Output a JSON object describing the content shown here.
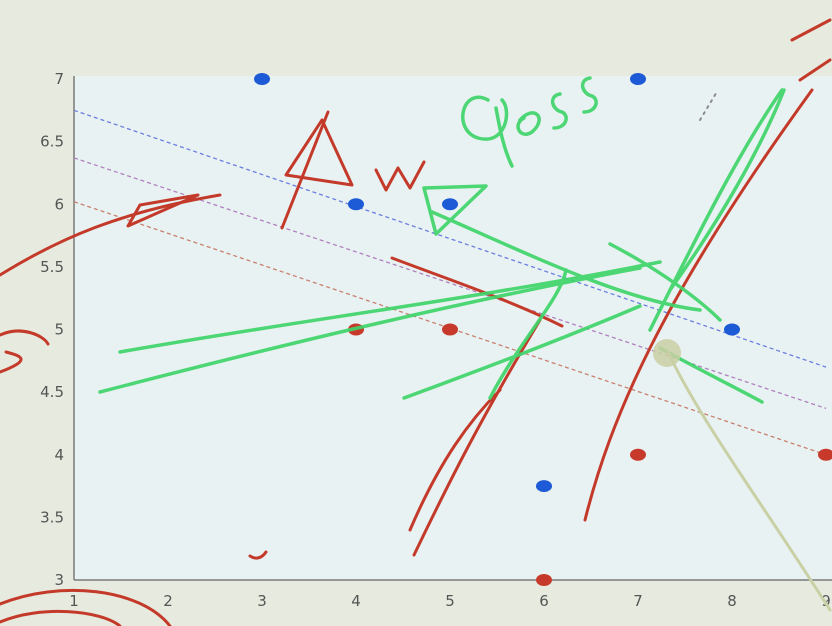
{
  "chart_data": {
    "type": "scatter",
    "title": "",
    "xlabel": "",
    "ylabel": "",
    "xlim": [
      1,
      9
    ],
    "ylim": [
      3,
      7
    ],
    "x_ticks": [
      "1",
      "2",
      "3",
      "4",
      "5",
      "6",
      "7",
      "8",
      "9"
    ],
    "y_ticks": [
      "3",
      "3.5",
      "4",
      "4.5",
      "5",
      "5.5",
      "6",
      "6.5",
      "7"
    ],
    "grid": false,
    "series": [
      {
        "color": "#1d5bd6",
        "points": [
          {
            "x": 3,
            "y": 7
          },
          {
            "x": 7,
            "y": 7
          },
          {
            "x": 4,
            "y": 6
          },
          {
            "x": 5,
            "y": 6
          },
          {
            "x": 8,
            "y": 5
          },
          {
            "x": 6,
            "y": 3.75
          }
        ]
      },
      {
        "color": "#c73a2b",
        "points": [
          {
            "x": 4,
            "y": 5
          },
          {
            "x": 5,
            "y": 5
          },
          {
            "x": 7,
            "y": 4
          },
          {
            "x": 9,
            "y": 4
          },
          {
            "x": 6,
            "y": 3
          }
        ]
      }
    ],
    "lines": [
      {
        "color": "#6a7fe0",
        "style": "dashed",
        "x": [
          1,
          9
        ],
        "y": [
          6.75,
          4.7
        ]
      },
      {
        "color": "#b080c0",
        "style": "dashed",
        "x": [
          1,
          9
        ],
        "y": [
          6.37,
          4.37
        ]
      },
      {
        "color": "#c88070",
        "style": "dashed",
        "x": [
          1,
          9
        ],
        "y": [
          6.02,
          4.0
        ]
      }
    ]
  },
  "annotations": {
    "handwritten": [
      "Δw",
      "loss"
    ]
  },
  "colors": {
    "red_ink": "#c43a2a",
    "green_ink": "#3fd46a",
    "plot_bg": "#e9f2f2"
  }
}
